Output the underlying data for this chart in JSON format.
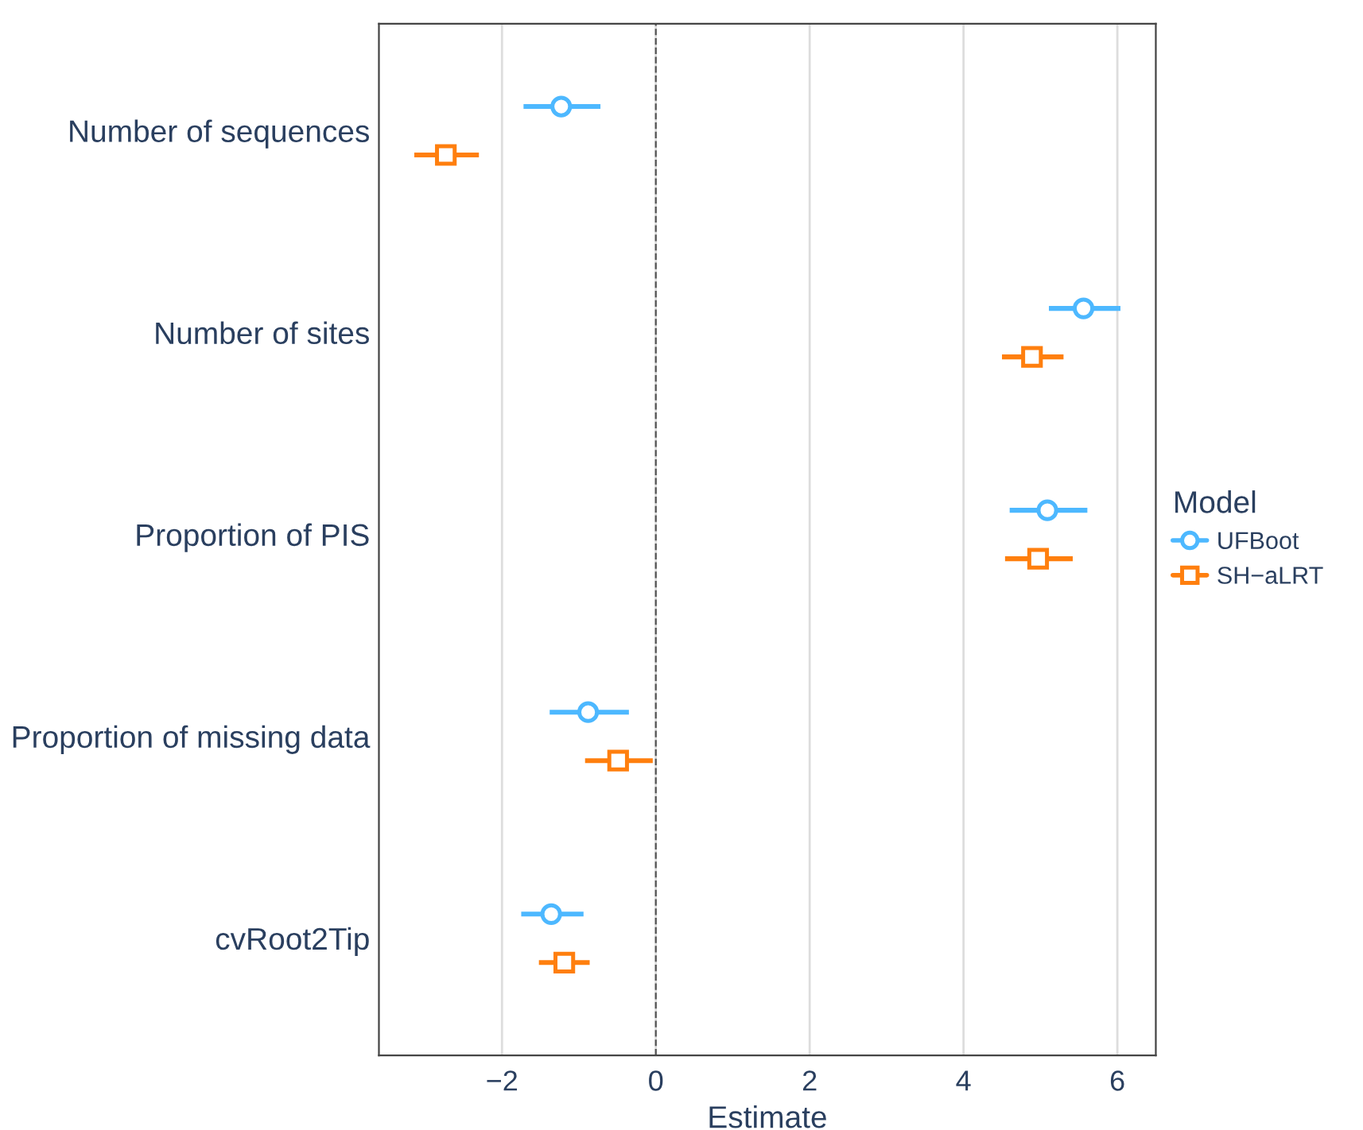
{
  "chart_data": {
    "type": "scatter",
    "orientation": "horizontal",
    "xlabel": "Estimate",
    "legend_title": "Model",
    "legend": "right",
    "grid": "x",
    "categories": [
      "Number of sequences",
      "Number of sites",
      "Proportion of PIS",
      "Proportion of missing data",
      "cvRoot2Tip"
    ],
    "xlim": [
      -3.6,
      6.5
    ],
    "xticks": [
      {
        "value": -2,
        "label": "−2"
      },
      0,
      2,
      4,
      6
    ],
    "ref_lines": [
      {
        "axis": "x",
        "value": 0,
        "color": "#555555",
        "line_style": "dashed"
      }
    ],
    "series": [
      {
        "name": "UFBoot",
        "color": "#4db8ff",
        "marker": "circle",
        "values": [
          -1.23,
          5.56,
          5.09,
          -0.88,
          -1.36
        ],
        "errors": [
          [
            -1.72,
            -0.72
          ],
          [
            5.11,
            6.04
          ],
          [
            4.6,
            5.61
          ],
          [
            -1.38,
            -0.35
          ],
          [
            -1.75,
            -0.94
          ]
        ]
      },
      {
        "name": "SH−aLRT",
        "color": "#ff7f0e",
        "marker": "square",
        "values": [
          -2.73,
          4.89,
          4.97,
          -0.49,
          -1.19
        ],
        "errors": [
          [
            -3.14,
            -2.3
          ],
          [
            4.5,
            5.3
          ],
          [
            4.54,
            5.42
          ],
          [
            -0.92,
            -0.04
          ],
          [
            -1.52,
            -0.86
          ]
        ]
      }
    ]
  }
}
